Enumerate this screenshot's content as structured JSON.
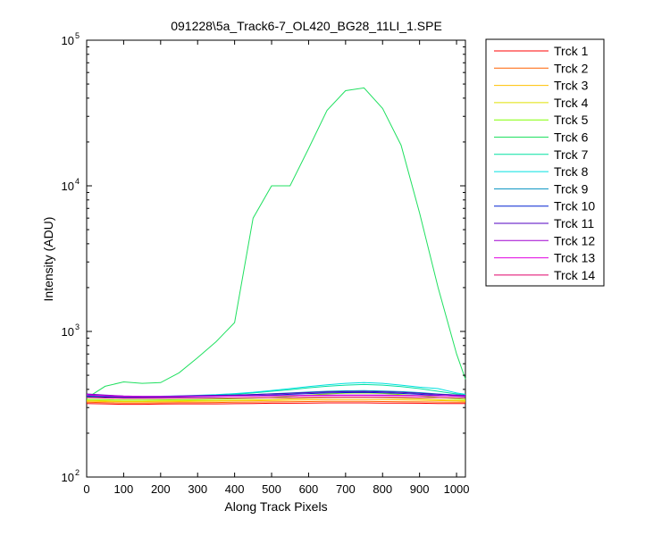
{
  "chart_data": {
    "type": "line",
    "title": "091228\\5a_Track6-7_OL420_BG28_11LI_1.SPE",
    "xlabel": "Along Track Pixels",
    "ylabel": "Intensity (ADU)",
    "xlim": [
      0,
      1024
    ],
    "ylim": [
      100,
      100000
    ],
    "yscale": "log",
    "grid": false,
    "legend_position": "outside-right",
    "x_ticks": [
      "0",
      "100",
      "200",
      "300",
      "400",
      "500",
      "600",
      "700",
      "800",
      "900",
      "1000"
    ],
    "y_ticks": [
      {
        "value": 100,
        "base": "10",
        "exp": "2"
      },
      {
        "value": 1000,
        "base": "10",
        "exp": "3"
      },
      {
        "value": 10000,
        "base": "10",
        "exp": "4"
      },
      {
        "value": 100000,
        "base": "10",
        "exp": "5"
      }
    ],
    "x": [
      0,
      50,
      100,
      150,
      200,
      250,
      300,
      350,
      400,
      450,
      500,
      550,
      600,
      650,
      700,
      750,
      800,
      850,
      900,
      950,
      1000,
      1024
    ],
    "series": [
      {
        "name": "Trck 1",
        "color": "#ff0000",
        "values": [
          320,
          318,
          316,
          316,
          317,
          318,
          318,
          318,
          319,
          320,
          321,
          321,
          322,
          323,
          323,
          323,
          322,
          322,
          321,
          320,
          320,
          320
        ]
      },
      {
        "name": "Trck 2",
        "color": "#ff6000",
        "values": [
          326,
          324,
          322,
          322,
          323,
          324,
          324,
          325,
          326,
          327,
          328,
          329,
          330,
          331,
          331,
          331,
          330,
          329,
          328,
          327,
          326,
          326
        ]
      },
      {
        "name": "Trck 3",
        "color": "#ffc000",
        "values": [
          332,
          330,
          328,
          328,
          329,
          330,
          331,
          332,
          333,
          334,
          336,
          337,
          339,
          340,
          341,
          341,
          340,
          339,
          337,
          335,
          333,
          332
        ]
      },
      {
        "name": "Trck 4",
        "color": "#dfe000",
        "values": [
          336,
          334,
          332,
          332,
          333,
          334,
          335,
          336,
          337,
          339,
          341,
          344,
          347,
          350,
          352,
          352,
          350,
          347,
          344,
          340,
          337,
          336
        ]
      },
      {
        "name": "Trck 5",
        "color": "#80ff00",
        "values": [
          342,
          340,
          338,
          338,
          339,
          340,
          341,
          343,
          345,
          348,
          352,
          358,
          365,
          372,
          377,
          378,
          375,
          368,
          360,
          352,
          345,
          342
        ]
      },
      {
        "name": "Trck 6",
        "color": "#20e060",
        "values": [
          348,
          420,
          450,
          440,
          445,
          520,
          660,
          850,
          1150,
          6000,
          10000,
          10000,
          18000,
          33000,
          45000,
          47000,
          34000,
          19000,
          6500,
          2000,
          700,
          470
        ]
      },
      {
        "name": "Trck 7",
        "color": "#00e0a0",
        "values": [
          360,
          356,
          354,
          355,
          356,
          358,
          361,
          365,
          370,
          378,
          388,
          398,
          410,
          420,
          428,
          432,
          428,
          418,
          405,
          388,
          372,
          366
        ]
      },
      {
        "name": "Trck 8",
        "color": "#00e0e0",
        "values": [
          364,
          360,
          358,
          358,
          359,
          361,
          364,
          368,
          374,
          382,
          393,
          405,
          418,
          430,
          440,
          445,
          440,
          428,
          414,
          405,
          378,
          370
        ]
      },
      {
        "name": "Trck 9",
        "color": "#0090c0",
        "values": [
          360,
          357,
          355,
          355,
          356,
          357,
          359,
          361,
          364,
          368,
          373,
          378,
          383,
          388,
          391,
          392,
          390,
          386,
          380,
          372,
          365,
          362
        ]
      },
      {
        "name": "Trck 10",
        "color": "#0020d0",
        "values": [
          357,
          354,
          352,
          352,
          353,
          354,
          356,
          358,
          360,
          363,
          366,
          370,
          374,
          378,
          380,
          381,
          379,
          375,
          370,
          364,
          359,
          357
        ]
      },
      {
        "name": "Trck 11",
        "color": "#5000c0",
        "values": [
          372,
          365,
          360,
          358,
          358,
          360,
          362,
          364,
          366,
          369,
          372,
          376,
          380,
          384,
          386,
          387,
          385,
          381,
          376,
          370,
          366,
          364
        ]
      },
      {
        "name": "Trck 12",
        "color": "#a000d0",
        "values": [
          366,
          360,
          357,
          356,
          356,
          357,
          358,
          359,
          360,
          361,
          362,
          363,
          364,
          365,
          366,
          366,
          365,
          364,
          363,
          362,
          361,
          361
        ]
      },
      {
        "name": "Trck 13",
        "color": "#e000e0",
        "values": [
          368,
          362,
          359,
          358,
          358,
          358,
          359,
          359,
          360,
          360,
          361,
          361,
          362,
          362,
          363,
          363,
          362,
          362,
          361,
          361,
          360,
          360
        ]
      },
      {
        "name": "Trck 14",
        "color": "#e0006a",
        "values": [
          352,
          349,
          347,
          347,
          347,
          348,
          348,
          349,
          349,
          350,
          351,
          351,
          352,
          352,
          353,
          353,
          352,
          352,
          351,
          351,
          350,
          350
        ]
      }
    ]
  }
}
